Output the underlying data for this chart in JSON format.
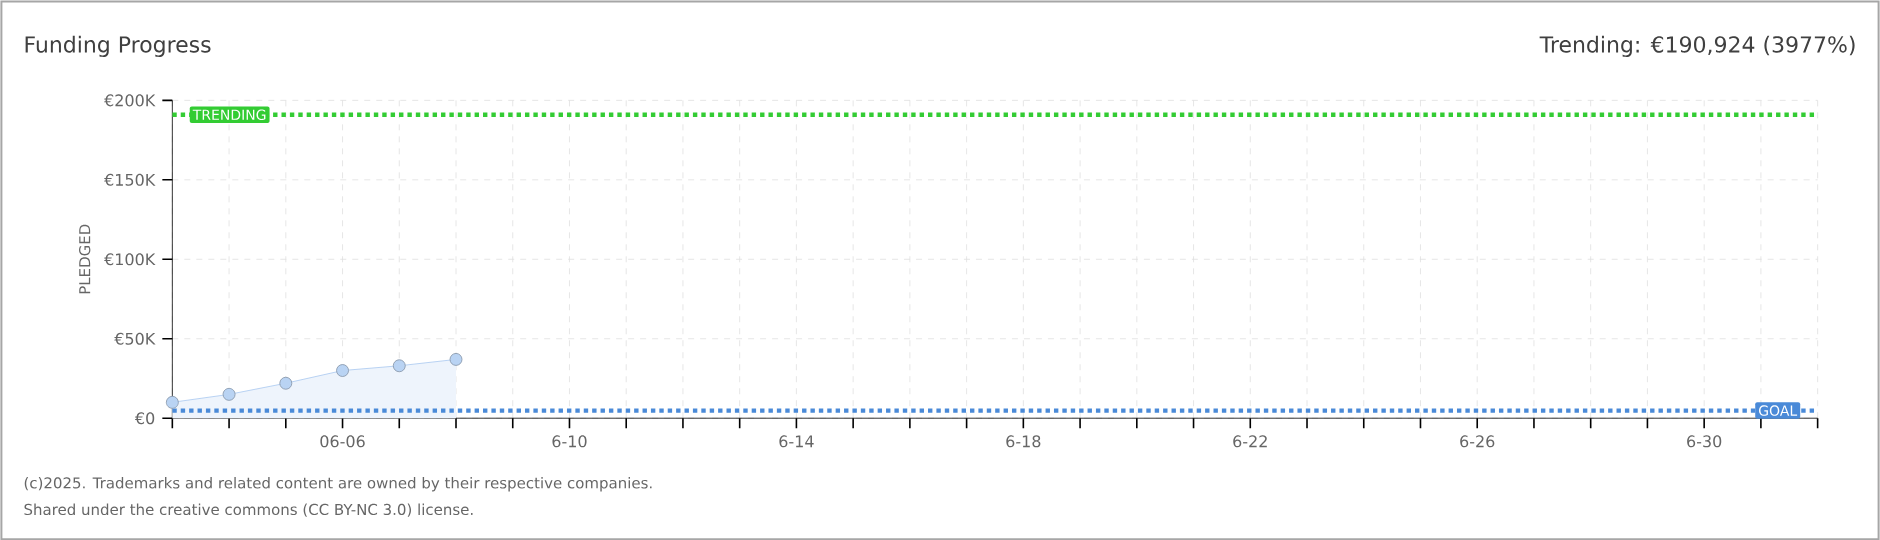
{
  "chart_data": {
    "type": "area",
    "title": "Funding Progress",
    "subtitle": "Trending: €190,924 (3977%)",
    "ylabel": "PLEDGED",
    "categories": [
      null,
      null,
      null,
      "06-06",
      null,
      null,
      null,
      "6-10",
      null,
      null,
      null,
      "6-14",
      null,
      null,
      null,
      "6-18",
      null,
      null,
      null,
      "6-22",
      null,
      null,
      null,
      "6-26",
      null,
      null,
      null,
      "6-30",
      null,
      null
    ],
    "series": [
      {
        "color": "#a8c8f0",
        "values": [
          10000,
          15000,
          22000,
          30000,
          33000,
          37000,
          null,
          null,
          null,
          null,
          null,
          null,
          null,
          null,
          null,
          null,
          null,
          null,
          null,
          null,
          null,
          null,
          null,
          null,
          null,
          null,
          null,
          null,
          null,
          null
        ]
      }
    ],
    "ylim": [
      0,
      200000
    ],
    "yticks": [
      {
        "value": 0,
        "label": "€0"
      },
      {
        "value": 50000,
        "label": "€50K"
      },
      {
        "value": 100000,
        "label": "€100K"
      },
      {
        "value": 150000,
        "label": "€150K"
      },
      {
        "value": 200000,
        "label": "€200K"
      }
    ],
    "grid": true,
    "marker": "circle",
    "ref_lines": [
      {
        "axis": "y",
        "value": 190924,
        "label": "TRENDING",
        "color": "#33cc33",
        "line_style": "dotted"
      },
      {
        "axis": "y",
        "value": 4800,
        "label": "GOAL",
        "color": "#4a8ad8",
        "line_style": "dotted"
      }
    ],
    "annotations": [
      "(c)2025. Trademarks and related content are owned by their respective companies.",
      "Shared under the creative commons (CC BY-NC 3.0) license."
    ]
  }
}
